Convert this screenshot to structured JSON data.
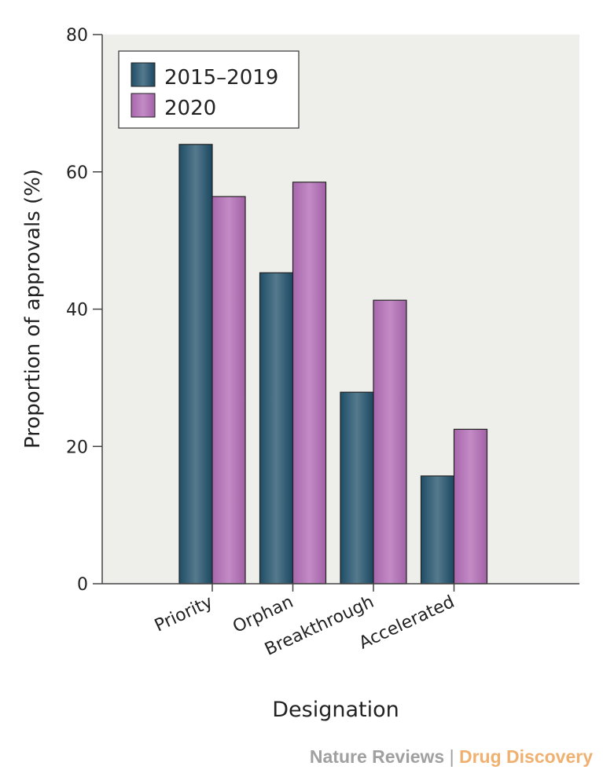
{
  "chart_data": {
    "type": "bar",
    "title": "",
    "xlabel": "Designation",
    "ylabel": "Proportion of approvals (%)",
    "ylim": [
      0,
      80
    ],
    "yticks": [
      0,
      20,
      40,
      60,
      80
    ],
    "categories": [
      "Priority",
      "Orphan",
      "Breakthrough",
      "Accelerated"
    ],
    "series": [
      {
        "name": "2015–2019",
        "color": "#2f5f78",
        "values": [
          64.0,
          45.3,
          27.9,
          15.7
        ]
      },
      {
        "name": "2020",
        "color": "#b478b8",
        "values": [
          56.4,
          58.5,
          41.3,
          22.5
        ]
      }
    ],
    "legend_position": "top-left",
    "grid": false
  },
  "footer": {
    "left": "Nature Reviews",
    "separator": "|",
    "right": "Drug Discovery"
  }
}
